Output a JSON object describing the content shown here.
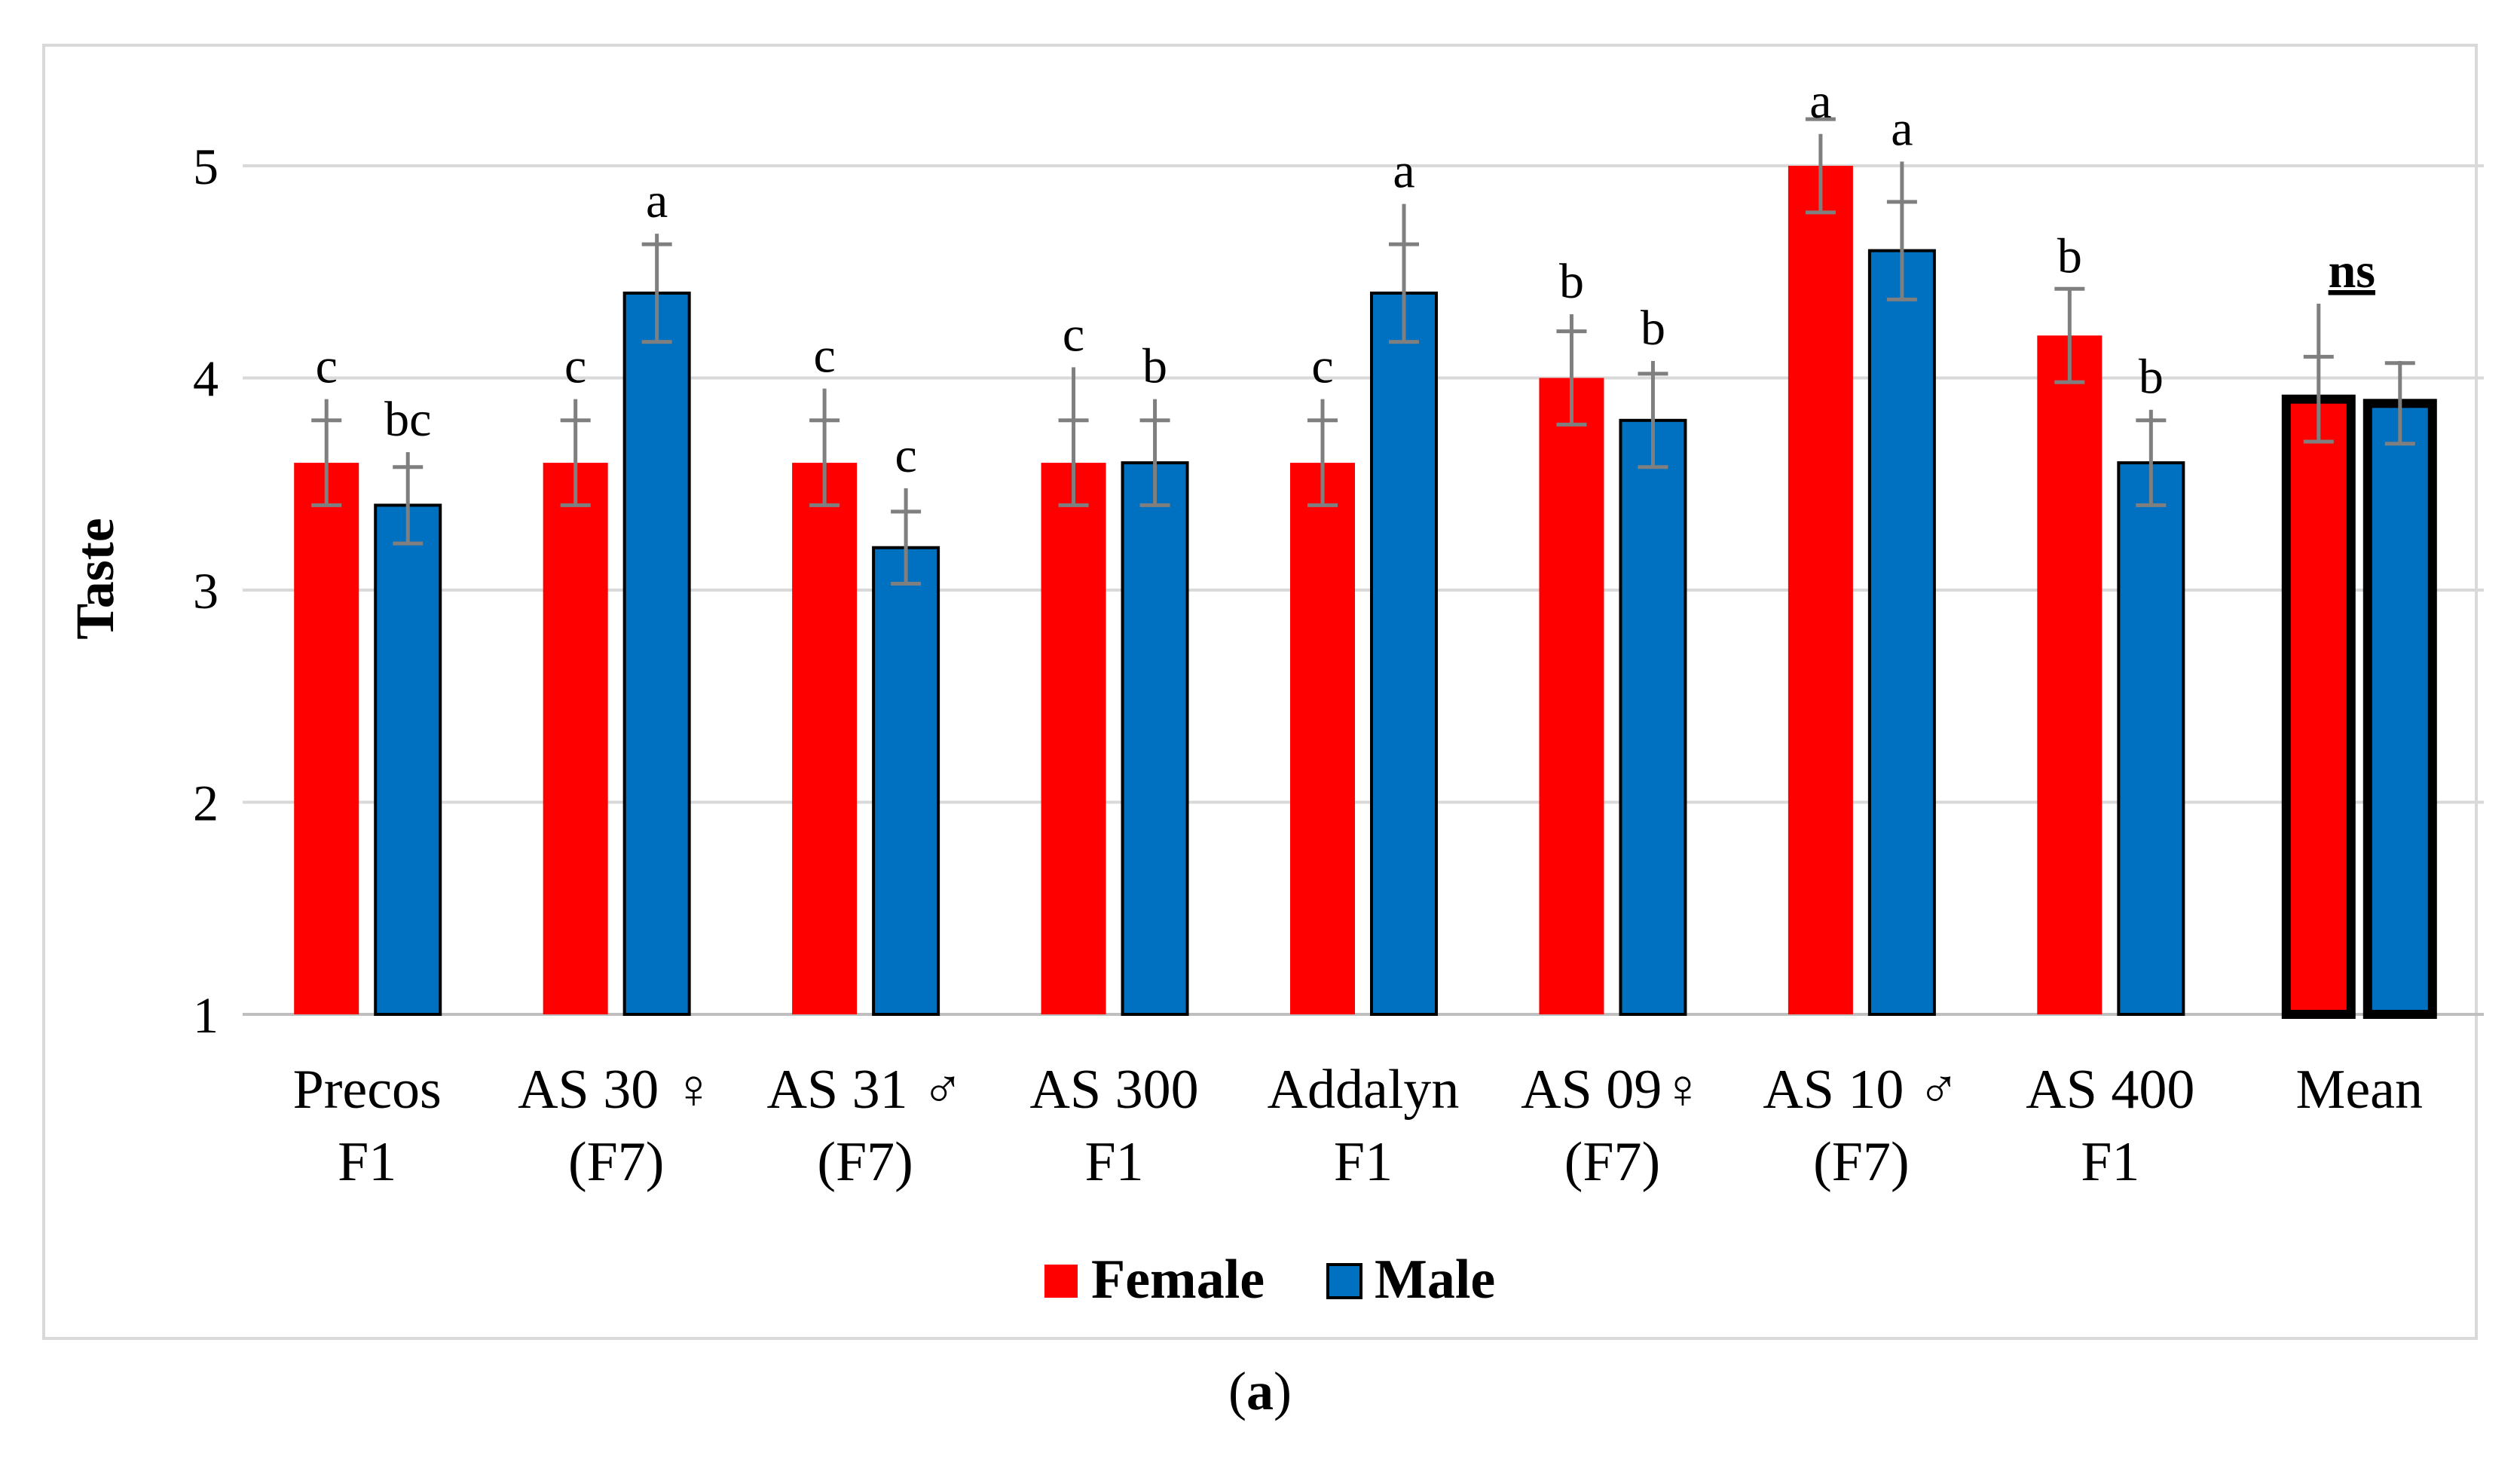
{
  "chart_data": {
    "type": "bar",
    "title": "",
    "xlabel": "",
    "ylabel": "Taste",
    "ylim": [
      1,
      5
    ],
    "yticks": [
      1,
      2,
      3,
      4,
      5
    ],
    "grid": true,
    "legend_position": "bottom",
    "categories": [
      [
        "Precos",
        "F1"
      ],
      [
        "AS 30 ♀",
        "(F7)"
      ],
      [
        "AS 31 ♂",
        "(F7)"
      ],
      [
        "AS 300",
        "F1"
      ],
      [
        "Addalyn",
        "F1"
      ],
      [
        "AS 09♀",
        "(F7)"
      ],
      [
        "AS 10 ♂",
        "(F7)"
      ],
      [
        "AS 400",
        "F1"
      ],
      [
        "Mean"
      ]
    ],
    "series": [
      {
        "name": "Female",
        "color": "#ff0000",
        "values": [
          3.6,
          3.6,
          3.6,
          3.6,
          3.6,
          4.0,
          5.0,
          4.2,
          3.9
        ],
        "error": [
          0.2,
          0.2,
          0.2,
          0.2,
          0.2,
          0.22,
          0.22,
          0.22,
          0.2
        ],
        "error_top": [
          0.3,
          0.3,
          0.35,
          0.45,
          0.3,
          0.3,
          0.15,
          0.22,
          0.45
        ],
        "labels": [
          "c",
          "c",
          "c",
          "c",
          "c",
          "b",
          "a",
          "b",
          "ns"
        ]
      },
      {
        "name": "Male",
        "color": "#0070c0",
        "values": [
          3.4,
          4.4,
          3.2,
          3.6,
          4.4,
          3.8,
          4.6,
          3.6,
          3.88
        ],
        "error": [
          0.18,
          0.23,
          0.17,
          0.2,
          0.23,
          0.22,
          0.23,
          0.2,
          0.19
        ],
        "error_top": [
          0.25,
          0.28,
          0.28,
          0.3,
          0.42,
          0.28,
          0.42,
          0.25,
          0.2
        ],
        "labels": [
          "bc",
          "a",
          "c",
          "b",
          "a",
          "b",
          "a",
          "b",
          ""
        ]
      }
    ]
  },
  "caption": {
    "open": "(",
    "letter": "a",
    "close": ")"
  }
}
